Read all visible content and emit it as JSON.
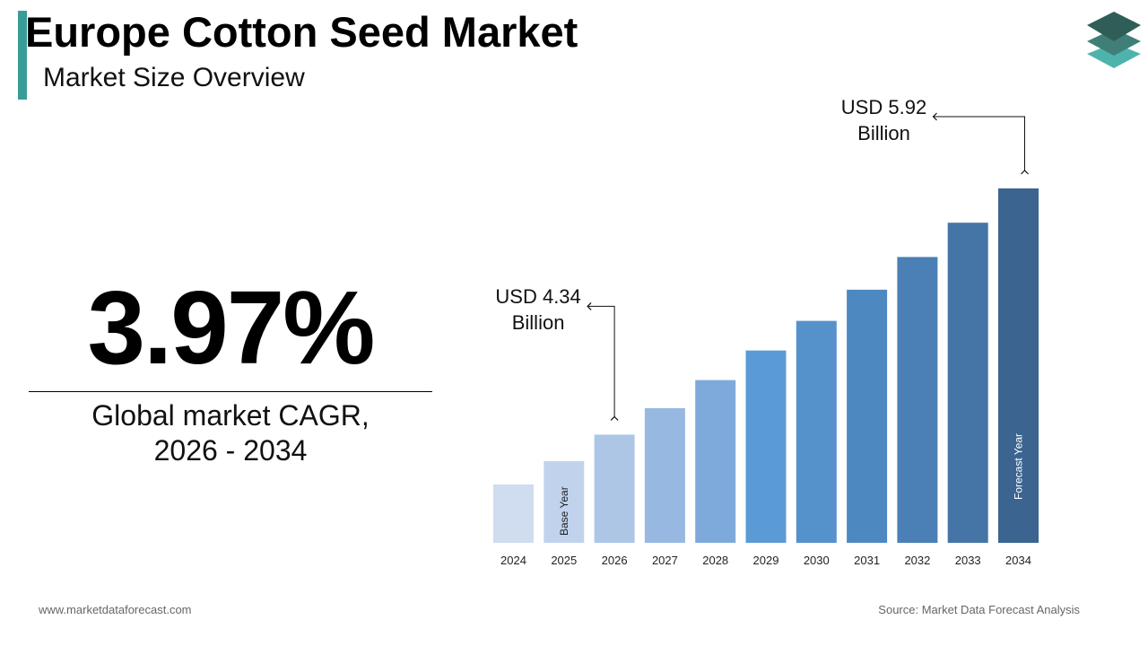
{
  "header": {
    "title": "Europe Cotton Seed Market",
    "subtitle": "Market Size Overview"
  },
  "cagr": {
    "value": "3.97%",
    "label": "Global market CAGR, 2026 - 2034"
  },
  "chart_data": {
    "type": "bar",
    "categories": [
      "2024",
      "2025",
      "2026",
      "2027",
      "2028",
      "2029",
      "2030",
      "2031",
      "2032",
      "2033",
      "2034"
    ],
    "values": [
      4.02,
      4.17,
      4.34,
      4.51,
      4.69,
      4.88,
      5.07,
      5.27,
      5.48,
      5.7,
      5.92
    ],
    "value_labels": [
      null,
      null,
      "USD 4.34 Billion",
      null,
      null,
      null,
      null,
      null,
      null,
      null,
      "USD 5.92 Billion"
    ],
    "bar_labels": [
      null,
      "Base Year",
      null,
      null,
      null,
      null,
      null,
      null,
      null,
      null,
      "Forecast Year"
    ],
    "colors": [
      "#d0dcef",
      "#c1d3ec",
      "#adc6e6",
      "#97b8e0",
      "#7eaadb",
      "#5b9bd5",
      "#5592cc",
      "#4e88c0",
      "#4a80b5",
      "#4475a6",
      "#3b6590"
    ]
  },
  "footer": {
    "website": "www.marketdataforecast.com",
    "source": "Source: Market Data Forecast Analysis"
  }
}
